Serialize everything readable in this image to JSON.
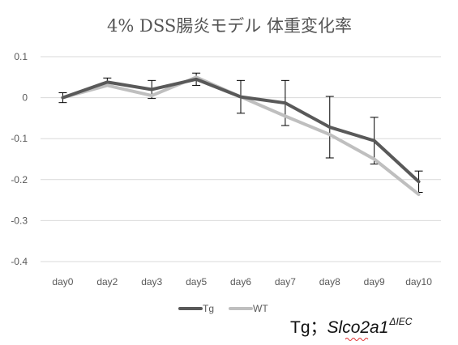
{
  "chart_data": {
    "type": "line",
    "title": "4% DSS腸炎モデル 体重変化率",
    "categories": [
      "day0",
      "day2",
      "day3",
      "day5",
      "day6",
      "day7",
      "day8",
      "day9",
      "day10"
    ],
    "ylim": [
      -0.4,
      0.1
    ],
    "yticks": [
      "0.1",
      "0",
      "-0.1",
      "-0.2",
      "-0.3",
      "-0.4"
    ],
    "grid": true,
    "legend_position": "bottom",
    "series": [
      {
        "name": "Tg",
        "color": "#595959",
        "values": [
          0.0,
          0.038,
          0.02,
          0.045,
          0.002,
          -0.013,
          -0.072,
          -0.105,
          -0.205
        ],
        "error": [
          0.012,
          0.01,
          0.022,
          0.015,
          0.04,
          0.055,
          0.075,
          0.057,
          0.026
        ]
      },
      {
        "name": "WT",
        "color": "#bfbfbf",
        "values": [
          0.0,
          0.03,
          0.005,
          0.05,
          0.002,
          -0.045,
          -0.09,
          -0.15,
          -0.236
        ],
        "error": [
          0.0,
          0.0,
          0.0,
          0.0,
          0.0,
          0.0,
          0.0,
          0.0,
          0.0
        ]
      }
    ],
    "gridline_color": "#d9d9d9"
  },
  "caption": {
    "prefix": "Tg；",
    "gene": "Slco2a1",
    "superscript": "ΔIEC"
  }
}
